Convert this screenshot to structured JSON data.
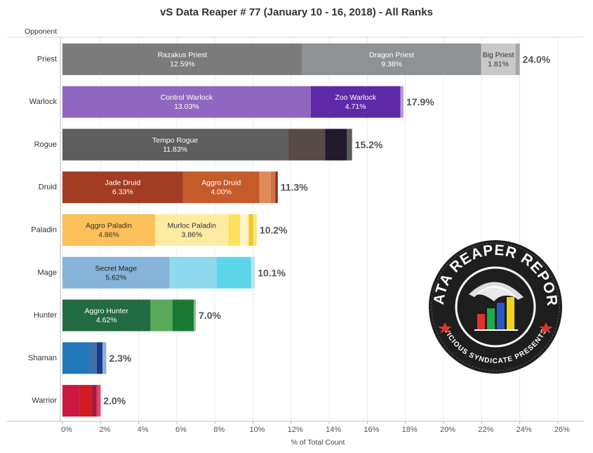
{
  "chart_data": {
    "type": "bar",
    "orientation": "horizontal",
    "stacked": true,
    "title": "vS Data Reaper # 77 (January 10 - 16, 2018) - All Ranks",
    "ylabel": "Opponent",
    "xlabel": "% of Total Count",
    "xlim": [
      0,
      26
    ],
    "xticks": [
      0,
      2,
      4,
      6,
      8,
      10,
      12,
      14,
      16,
      18,
      20,
      22,
      24,
      26
    ],
    "xtick_labels": [
      "0%",
      "2%",
      "4%",
      "6%",
      "8%",
      "10%",
      "12%",
      "14%",
      "16%",
      "18%",
      "20%",
      "22%",
      "24%",
      "26%"
    ],
    "gridlines": "vertical",
    "legend": "none",
    "categories": [
      {
        "name": "Priest",
        "total": 24.0,
        "total_label": "24.0%",
        "segments": [
          {
            "name": "Razakus Priest",
            "value": 12.59,
            "value_label": "12.59%",
            "color": "#7b7b7b",
            "text_color": "#ffffff"
          },
          {
            "name": "Dragon Priest",
            "value": 9.38,
            "value_label": "9.38%",
            "color": "#8e9295",
            "text_color": "#ffffff"
          },
          {
            "name": "Big Priest",
            "value": 1.81,
            "value_label": "1.81%",
            "color": "#c8c8c8",
            "text_color": "#333333"
          },
          {
            "name": "",
            "value": 0.22,
            "value_label": "",
            "color": "#a6a6a6",
            "text_color": "#333333"
          }
        ]
      },
      {
        "name": "Warlock",
        "total": 17.9,
        "total_label": "17.9%",
        "segments": [
          {
            "name": "Control Warlock",
            "value": 13.03,
            "value_label": "13.03%",
            "color": "#9067c0",
            "text_color": "#ffffff"
          },
          {
            "name": "Zoo Warlock",
            "value": 4.71,
            "value_label": "4.71%",
            "color": "#5f2aa8",
            "text_color": "#ffffff"
          },
          {
            "name": "",
            "value": 0.16,
            "value_label": "",
            "color": "#b79ddb",
            "text_color": "#333333"
          }
        ]
      },
      {
        "name": "Rogue",
        "total": 15.2,
        "total_label": "15.2%",
        "segments": [
          {
            "name": "Tempo Rogue",
            "value": 11.83,
            "value_label": "11.83%",
            "color": "#5e5e5e",
            "text_color": "#ffffff"
          },
          {
            "name": "",
            "value": 1.95,
            "value_label": "",
            "color": "#584a48",
            "text_color": "#ffffff"
          },
          {
            "name": "",
            "value": 1.15,
            "value_label": "",
            "color": "#221a2c",
            "text_color": "#ffffff"
          },
          {
            "name": "",
            "value": 0.27,
            "value_label": "",
            "color": "#5a5a5a",
            "text_color": "#ffffff"
          }
        ]
      },
      {
        "name": "Druid",
        "total": 11.3,
        "total_label": "11.3%",
        "segments": [
          {
            "name": "Jade Druid",
            "value": 6.33,
            "value_label": "6.33%",
            "color": "#a23c22",
            "text_color": "#ffffff"
          },
          {
            "name": "Aggro Druid",
            "value": 4.0,
            "value_label": "4.00%",
            "color": "#c55a2b",
            "text_color": "#ffffff"
          },
          {
            "name": "",
            "value": 0.6,
            "value_label": "",
            "color": "#e08a57",
            "text_color": "#ffffff"
          },
          {
            "name": "",
            "value": 0.25,
            "value_label": "",
            "color": "#cd7447",
            "text_color": "#ffffff"
          },
          {
            "name": "",
            "value": 0.12,
            "value_label": "",
            "color": "#8a2a18",
            "text_color": "#ffffff"
          }
        ]
      },
      {
        "name": "Paladin",
        "total": 10.2,
        "total_label": "10.2%",
        "segments": [
          {
            "name": "Aggro Paladin",
            "value": 4.86,
            "value_label": "4.86%",
            "color": "#fec059",
            "text_color": "#333333"
          },
          {
            "name": "Murloc Paladin",
            "value": 3.86,
            "value_label": "3.86%",
            "color": "#fdeba2",
            "text_color": "#333333"
          },
          {
            "name": "",
            "value": 0.6,
            "value_label": "",
            "color": "#fde25a",
            "text_color": "#333333"
          },
          {
            "name": "",
            "value": 0.45,
            "value_label": "",
            "color": "#fdf3c4",
            "text_color": "#333333"
          },
          {
            "name": "",
            "value": 0.24,
            "value_label": "",
            "color": "#f7c233",
            "text_color": "#333333"
          },
          {
            "name": "",
            "value": 0.19,
            "value_label": "",
            "color": "#f8ea7a",
            "text_color": "#333333"
          }
        ]
      },
      {
        "name": "Mage",
        "total": 10.1,
        "total_label": "10.1%",
        "segments": [
          {
            "name": "Secret Mage",
            "value": 5.62,
            "value_label": "5.62%",
            "color": "#86b4da",
            "text_color": "#222222"
          },
          {
            "name": "",
            "value": 2.46,
            "value_label": "",
            "color": "#8fd9ec",
            "text_color": "#222222"
          },
          {
            "name": "",
            "value": 1.82,
            "value_label": "",
            "color": "#5cd5e8",
            "text_color": "#222222"
          },
          {
            "name": "",
            "value": 0.2,
            "value_label": "",
            "color": "#b6e3ee",
            "text_color": "#222222"
          }
        ]
      },
      {
        "name": "Hunter",
        "total": 7.0,
        "total_label": "7.0%",
        "segments": [
          {
            "name": "Aggro Hunter",
            "value": 4.62,
            "value_label": "4.62%",
            "color": "#236b40",
            "text_color": "#ffffff"
          },
          {
            "name": "",
            "value": 1.15,
            "value_label": "",
            "color": "#5ba95b",
            "text_color": "#ffffff"
          },
          {
            "name": "",
            "value": 1.12,
            "value_label": "",
            "color": "#1a7a35",
            "text_color": "#ffffff"
          },
          {
            "name": "",
            "value": 0.11,
            "value_label": "",
            "color": "#7fc87f",
            "text_color": "#ffffff"
          }
        ]
      },
      {
        "name": "Shaman",
        "total": 2.3,
        "total_label": "2.3%",
        "segments": [
          {
            "name": "",
            "value": 1.4,
            "value_label": "",
            "color": "#2277b8",
            "text_color": "#ffffff"
          },
          {
            "name": "",
            "value": 0.4,
            "value_label": "",
            "color": "#3d6faa",
            "text_color": "#ffffff"
          },
          {
            "name": "",
            "value": 0.3,
            "value_label": "",
            "color": "#1b3a8c",
            "text_color": "#ffffff"
          },
          {
            "name": "",
            "value": 0.2,
            "value_label": "",
            "color": "#88aee0",
            "text_color": "#ffffff"
          }
        ]
      },
      {
        "name": "Warrior",
        "total": 2.0,
        "total_label": "2.0%",
        "segments": [
          {
            "name": "",
            "value": 0.9,
            "value_label": "",
            "color": "#cc1740",
            "text_color": "#ffffff"
          },
          {
            "name": "",
            "value": 0.65,
            "value_label": "",
            "color": "#d21a23",
            "text_color": "#ffffff"
          },
          {
            "name": "",
            "value": 0.25,
            "value_label": "",
            "color": "#a8183a",
            "text_color": "#ffffff"
          },
          {
            "name": "",
            "value": 0.2,
            "value_label": "",
            "color": "#e63f6a",
            "text_color": "#ffffff"
          }
        ]
      }
    ]
  },
  "logo": {
    "arc_top_text": "DATA REAPER REPORT",
    "arc_bottom_text": "VICIOUS SYNDICATE PRESENTS",
    "colors": {
      "ring": "#1e1e1e",
      "text": "#ffffff",
      "bar_red": "#e0322c",
      "bar_green": "#1faa4b",
      "bar_blue": "#2b59c3",
      "bar_yellow": "#f3d21b"
    }
  }
}
